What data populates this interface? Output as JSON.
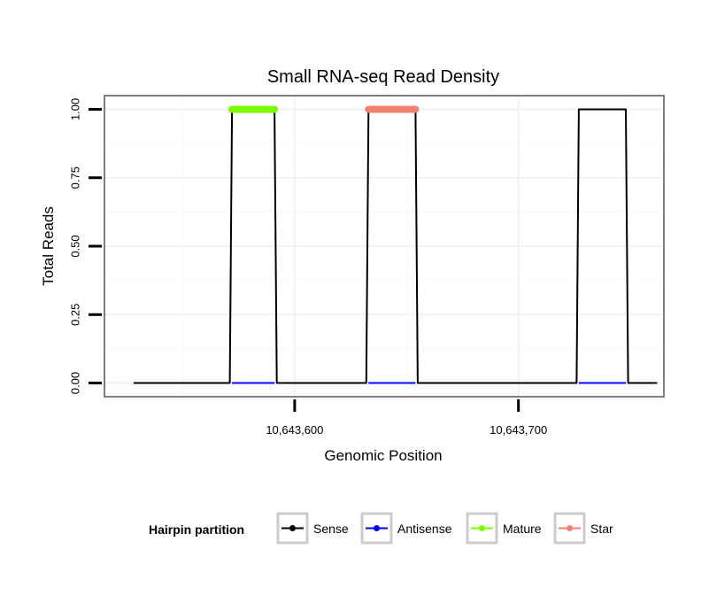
{
  "chart_data": {
    "type": "line",
    "title": "Small RNA-seq Read Density",
    "xlabel": "Genomic Position",
    "ylabel": "Total Reads",
    "xlim": [
      10643515,
      10643765
    ],
    "ylim": [
      -0.05,
      1.05
    ],
    "x_ticks": [
      10643600,
      10643700
    ],
    "x_tick_labels": [
      "10,643,600",
      "10,643,700"
    ],
    "y_ticks": [
      0,
      0.25,
      0.5,
      0.75,
      1.0
    ],
    "y_tick_labels": [
      "0.00",
      "0.25",
      "0.50",
      "0.75",
      "1.00"
    ],
    "grid": true,
    "legend_title": "Hairpin partition",
    "legend_position": "bottom",
    "series": [
      {
        "name": "Sense",
        "color": "#000000",
        "points": [
          [
            10643528,
            0
          ],
          [
            10643571,
            0
          ],
          [
            10643572,
            1
          ],
          [
            10643591,
            1
          ],
          [
            10643592,
            0
          ],
          [
            10643632,
            0
          ],
          [
            10643633,
            1
          ],
          [
            10643654,
            1
          ],
          [
            10643655,
            0
          ],
          [
            10643726,
            0
          ],
          [
            10643727,
            1
          ],
          [
            10643748,
            1
          ],
          [
            10643749,
            0
          ],
          [
            10643762,
            0
          ]
        ]
      },
      {
        "name": "Antisense",
        "color": "#0000ff",
        "points": [
          [
            10643572,
            0
          ],
          [
            10643591,
            0
          ],
          [
            10643633,
            0
          ],
          [
            10643654,
            0
          ],
          [
            10643727,
            0
          ],
          [
            10643748,
            0
          ]
        ]
      },
      {
        "name": "Mature",
        "color": "#7cfc00",
        "points": [
          [
            10643572,
            1
          ],
          [
            10643591,
            1
          ]
        ]
      },
      {
        "name": "Star",
        "color": "#f08070",
        "points": [
          [
            10643633,
            1
          ],
          [
            10643654,
            1
          ]
        ]
      }
    ]
  }
}
